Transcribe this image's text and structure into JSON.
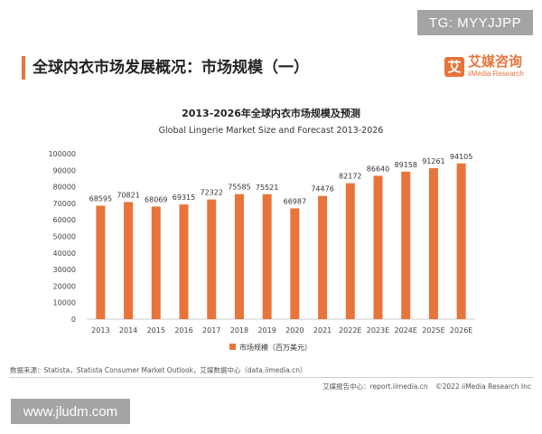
{
  "badge": "TG: MYYJJPP",
  "header": {
    "title": "全球内衣市场发展概况：市场规模（一）"
  },
  "logo": {
    "symbol": "艾",
    "name_cn": "艾媒咨询",
    "name_en": "iiMedia Research"
  },
  "chart_data": {
    "type": "bar",
    "title": "2013-2026年全球内衣市场规模及预测",
    "subtitle": "Global Lingerie Market Size and Forecast 2013-2026",
    "categories": [
      "2013",
      "2014",
      "2015",
      "2016",
      "2017",
      "2018",
      "2019",
      "2020",
      "2021",
      "2022E",
      "2023E",
      "2024E",
      "2025E",
      "2026E"
    ],
    "series": [
      {
        "name": "市场规模（百万美元）",
        "values": [
          68595,
          70821,
          68069,
          69315,
          72322,
          75585,
          75521,
          66987,
          74476,
          82172,
          86640,
          89158,
          91261,
          94105
        ],
        "color": "#e8743b"
      }
    ],
    "ylim": [
      0,
      100000
    ],
    "yticks": [
      0,
      10000,
      20000,
      30000,
      40000,
      50000,
      60000,
      70000,
      80000,
      90000,
      100000
    ],
    "grid": false,
    "legend_position": "bottom-center",
    "data_labels": true
  },
  "source": "数据来源：Statista，Statista Consumer Market Outlook，艾媒数据中心（data.iimedia.cn）",
  "footer": {
    "report": "艾媒报告中心：report.iimedia.cn",
    "copyright": "©2022  iiMedia Research  Inc"
  },
  "watermark": "www.jludm.com"
}
